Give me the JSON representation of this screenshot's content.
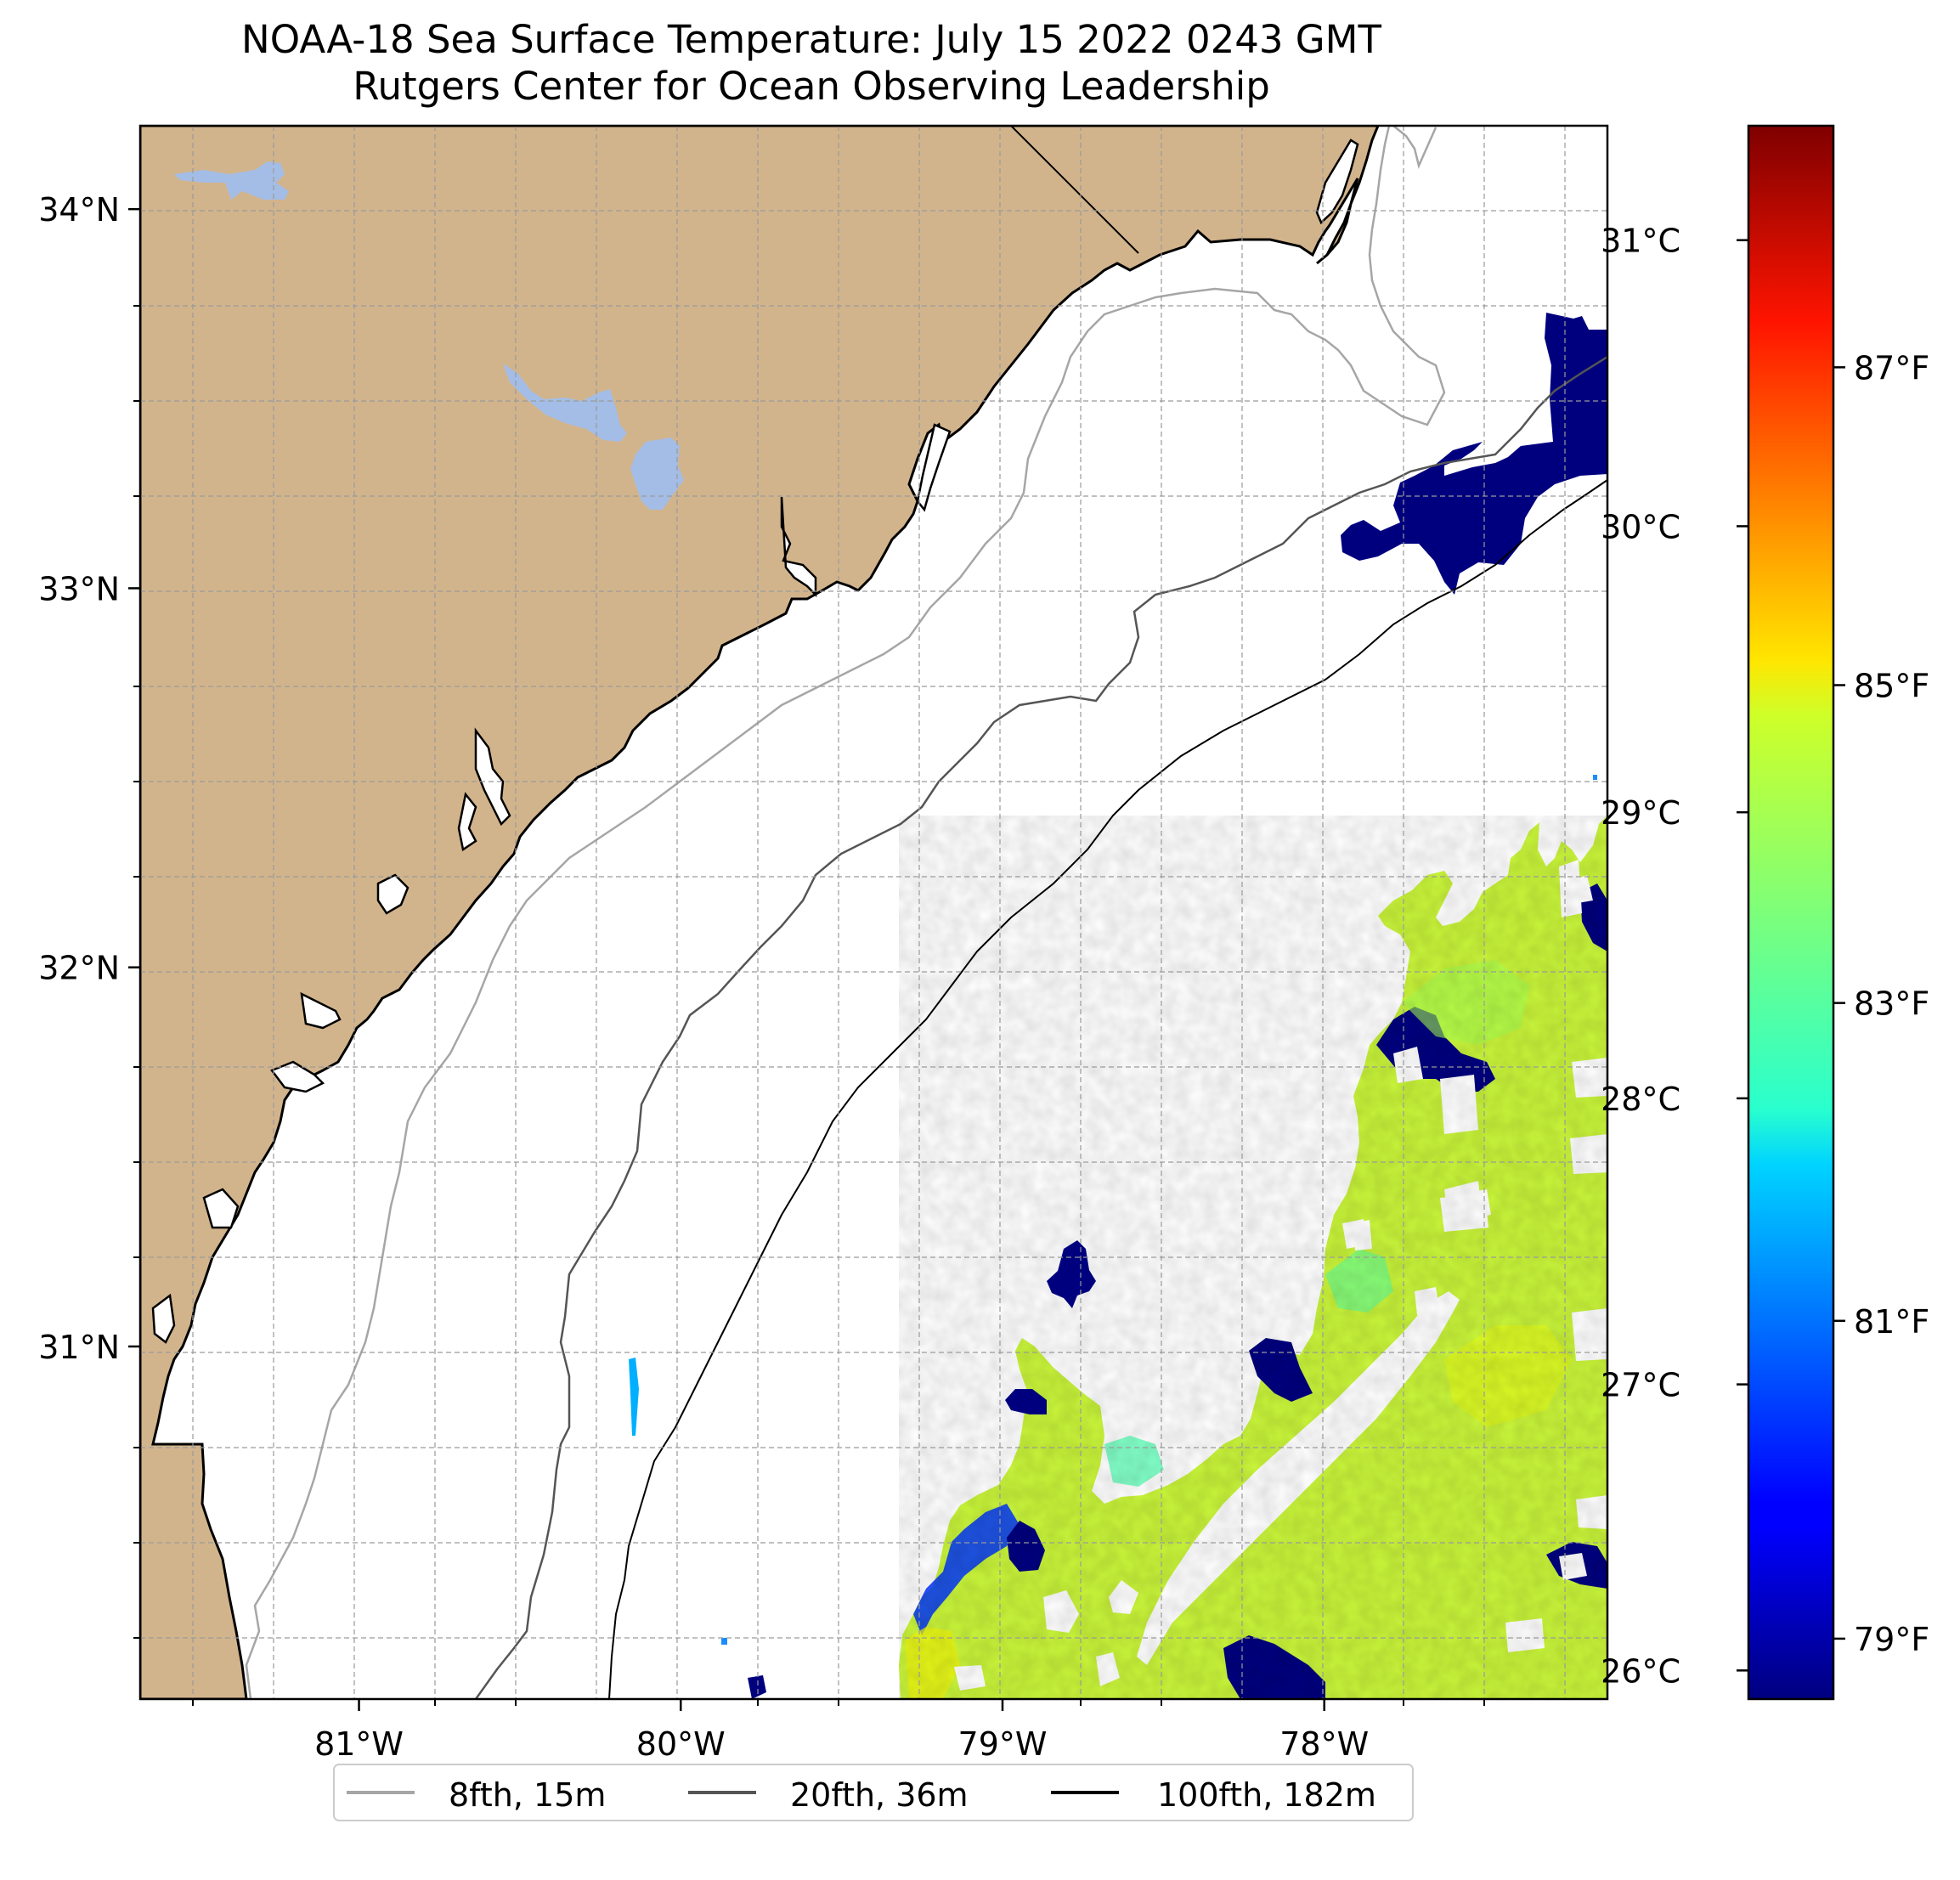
{
  "title": "NOAA-18 Sea Surface Temperature: July 15 2022 0243 GMT",
  "subtitle": "Rutgers Center for Ocean Observing Leadership",
  "map": {
    "lon_range": [
      -81.68,
      -77.12
    ],
    "lat_range": [
      30.07,
      34.22
    ],
    "lon_ticks": [
      {
        "value": -81,
        "label": "81°W"
      },
      {
        "value": -80,
        "label": "80°W"
      },
      {
        "value": -79,
        "label": "79°W"
      },
      {
        "value": -78,
        "label": "78°W"
      }
    ],
    "lat_ticks": [
      {
        "value": 34,
        "label": "34°N"
      },
      {
        "value": 33,
        "label": "33°N"
      },
      {
        "value": 32,
        "label": "32°N"
      },
      {
        "value": 31,
        "label": "31°N"
      }
    ],
    "gridlines": true,
    "land_color": "#d2b48c",
    "lake_color": "#a3bde6"
  },
  "colorbar": {
    "colormap": "jet",
    "range_c": [
      25.9,
      31.4
    ],
    "celsius_ticks": [
      {
        "value": 26,
        "label": "26°C"
      },
      {
        "value": 27,
        "label": "27°C"
      },
      {
        "value": 28,
        "label": "28°C"
      },
      {
        "value": 29,
        "label": "29°C"
      },
      {
        "value": 30,
        "label": "30°C"
      },
      {
        "value": 31,
        "label": "31°C"
      }
    ],
    "fahrenheit_ticks": [
      {
        "value": 79,
        "label": "79°F"
      },
      {
        "value": 81,
        "label": "81°F"
      },
      {
        "value": 83,
        "label": "83°F"
      },
      {
        "value": 85,
        "label": "85°F"
      },
      {
        "value": 87,
        "label": "87°F"
      }
    ]
  },
  "legend": {
    "placement": "bottom-center",
    "items": [
      {
        "label": "8fth, 15m",
        "color": "#a6a6a6"
      },
      {
        "label": "20fth, 36m",
        "color": "#555555"
      },
      {
        "label": "100fth, 182m",
        "color": "#000000"
      }
    ]
  }
}
